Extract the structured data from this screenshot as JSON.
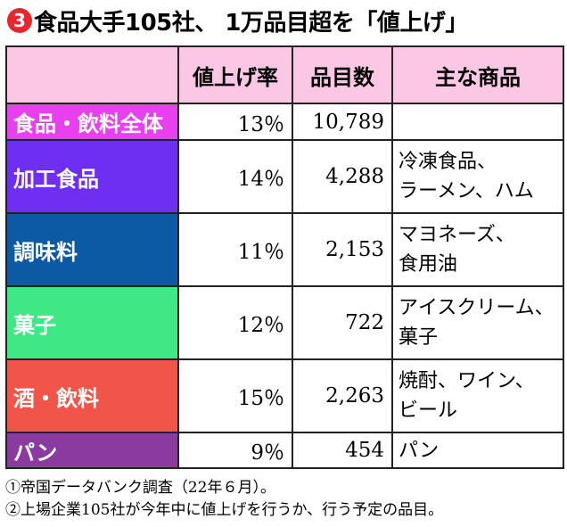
{
  "title": {
    "number_badge": "3",
    "text": "食品大手105社、 1万品目超を「値上げ」"
  },
  "table": {
    "headers": [
      "",
      "値上げ率",
      "品目数",
      "主な商品"
    ],
    "rows": [
      {
        "category": "食品・飲料全体",
        "rate": "13％",
        "items_count": "10,789",
        "main_products": [
          "",
          ""
        ],
        "bg": "#e940ef",
        "fg": "#ffffff"
      },
      {
        "category": "加工食品",
        "rate": "14％",
        "items_count": "4,288",
        "main_products": [
          "冷凍食品、",
          "ラーメン、ハム"
        ],
        "bg": "#6f2ff2",
        "fg": "#ffffff"
      },
      {
        "category": "調味料",
        "rate": "11％",
        "items_count": "2,153",
        "main_products": [
          "マヨネーズ、",
          "食用油"
        ],
        "bg": "#0c5aa4",
        "fg": "#ffffff"
      },
      {
        "category": "菓子",
        "rate": "12％",
        "items_count": "722",
        "main_products": [
          "アイスクリーム、",
          "菓子"
        ],
        "bg": "#3fe884",
        "fg": "#ffffff"
      },
      {
        "category": "酒・飲料",
        "rate": "15％",
        "items_count": "2,263",
        "main_products": [
          "焼酎、ワイン、",
          "ビール"
        ],
        "bg": "#f15449",
        "fg": "#ffffff"
      },
      {
        "category": "パン",
        "rate": "9％",
        "items_count": "454",
        "main_products": [
          "パン",
          ""
        ],
        "bg": "#8b3aa0",
        "fg": "#ffffff"
      }
    ]
  },
  "notes": [
    "①帝国データバンク調査（22年６月）。",
    "②上場企業105社が今年中に値上げを行うか、行う予定の品目。"
  ],
  "chart_data": {
    "type": "table",
    "title": "食品大手105社、 1万品目超を「値上げ」",
    "columns": [
      "",
      "値上げ率",
      "品目数",
      "主な商品"
    ],
    "rows": [
      [
        "食品・飲料全体",
        "13％",
        "10,789",
        ""
      ],
      [
        "加工食品",
        "14％",
        "4,288",
        "冷凍食品、ラーメン、ハム"
      ],
      [
        "調味料",
        "11％",
        "2,153",
        "マヨネーズ、食用油"
      ],
      [
        "菓子",
        "12％",
        "722",
        "アイスクリーム、菓子"
      ],
      [
        "酒・飲料",
        "15％",
        "2,263",
        "焼酎、ワイン、ビール"
      ],
      [
        "パン",
        "9％",
        "454",
        "パン"
      ]
    ]
  }
}
